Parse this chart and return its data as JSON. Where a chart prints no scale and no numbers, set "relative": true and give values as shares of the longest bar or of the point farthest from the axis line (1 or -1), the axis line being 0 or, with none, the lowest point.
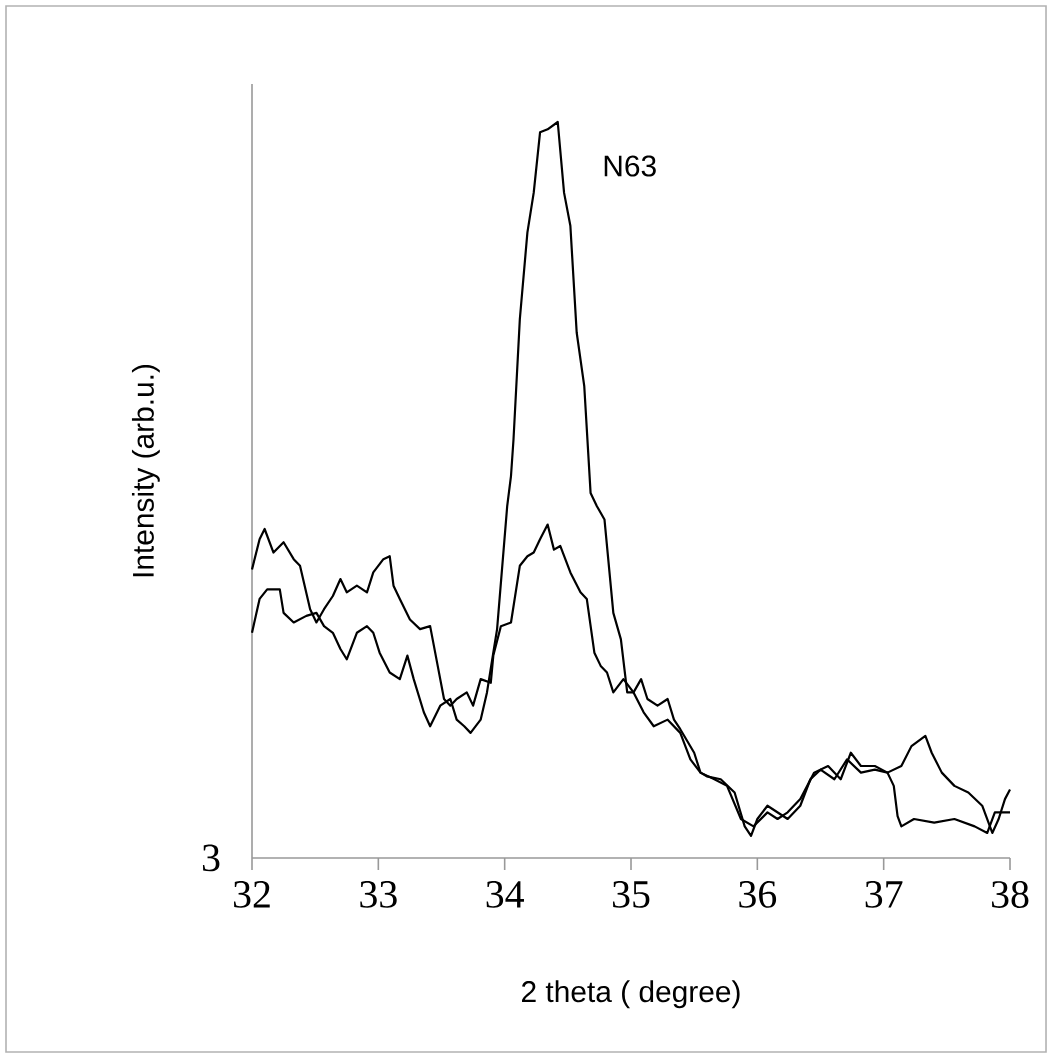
{
  "chart_data": {
    "type": "line",
    "relative": true,
    "xlabel": "2 theta ( degree)",
    "ylabel": "Intensity (arb.u.)",
    "annotations": [
      "3"
    ],
    "xlim": [
      32,
      38
    ],
    "xticks": [
      32,
      33,
      34,
      35,
      36,
      37,
      38
    ],
    "series": [
      {
        "name": "N63",
        "color": "#000000",
        "x": [
          32.0,
          32.06,
          32.12,
          32.22,
          32.25,
          32.33,
          32.43,
          32.51,
          32.57,
          32.64,
          32.7,
          32.75,
          32.83,
          32.91,
          32.96,
          33.01,
          33.09,
          33.17,
          33.23,
          33.28,
          33.36,
          33.41,
          33.49,
          33.57,
          33.62,
          33.68,
          33.73,
          33.81,
          33.86,
          33.91,
          33.94,
          34.02,
          34.05,
          34.07,
          34.12,
          34.18,
          34.23,
          34.28,
          34.34,
          34.42,
          34.47,
          34.52,
          34.57,
          34.63,
          34.68,
          34.73,
          34.79,
          34.86,
          34.92,
          34.97,
          35.02,
          35.08,
          35.13,
          35.21,
          35.29,
          35.34,
          35.39,
          35.5,
          35.55,
          35.6,
          35.71,
          35.82,
          35.9,
          35.95,
          36.0,
          36.08,
          36.16,
          36.24,
          36.34,
          36.42,
          36.5,
          36.61,
          36.71,
          36.82,
          36.93,
          37.03,
          37.08,
          37.11,
          37.14,
          37.24,
          37.4,
          37.56,
          37.72,
          37.82,
          37.88,
          38.0
        ],
        "values": [
          0.306,
          0.352,
          0.365,
          0.365,
          0.333,
          0.32,
          0.329,
          0.333,
          0.315,
          0.306,
          0.284,
          0.27,
          0.306,
          0.315,
          0.306,
          0.279,
          0.252,
          0.243,
          0.275,
          0.243,
          0.198,
          0.179,
          0.207,
          0.216,
          0.188,
          0.179,
          0.17,
          0.188,
          0.225,
          0.279,
          0.311,
          0.478,
          0.519,
          0.569,
          0.732,
          0.85,
          0.904,
          0.986,
          0.99,
          1.0,
          0.904,
          0.859,
          0.714,
          0.641,
          0.496,
          0.478,
          0.46,
          0.333,
          0.297,
          0.225,
          0.225,
          0.243,
          0.216,
          0.207,
          0.216,
          0.188,
          0.175,
          0.143,
          0.116,
          0.111,
          0.107,
          0.089,
          0.043,
          0.03,
          0.053,
          0.071,
          0.062,
          0.053,
          0.071,
          0.107,
          0.12,
          0.107,
          0.134,
          0.116,
          0.12,
          0.116,
          0.098,
          0.057,
          0.043,
          0.053,
          0.048,
          0.053,
          0.043,
          0.034,
          0.062,
          0.062
        ]
      },
      {
        "color": "#000000",
        "x": [
          32.0,
          32.06,
          32.1,
          32.17,
          32.25,
          32.33,
          32.38,
          32.46,
          32.51,
          32.57,
          32.64,
          32.7,
          32.75,
          32.83,
          32.91,
          32.96,
          33.04,
          33.09,
          33.12,
          33.17,
          33.25,
          33.33,
          33.41,
          33.47,
          33.52,
          33.57,
          33.62,
          33.7,
          33.75,
          33.81,
          33.89,
          33.91,
          33.97,
          34.05,
          34.12,
          34.18,
          34.23,
          34.28,
          34.34,
          34.39,
          34.44,
          34.52,
          34.6,
          34.65,
          34.71,
          34.76,
          34.81,
          34.86,
          34.94,
          35.02,
          35.1,
          35.18,
          35.29,
          35.39,
          35.47,
          35.55,
          35.66,
          35.76,
          35.87,
          35.97,
          36.08,
          36.16,
          36.24,
          36.34,
          36.45,
          36.56,
          36.66,
          36.74,
          36.82,
          36.93,
          37.03,
          37.14,
          37.22,
          37.33,
          37.38,
          37.46,
          37.56,
          37.67,
          37.78,
          37.86,
          37.91,
          37.96,
          38.0
        ],
        "values": [
          0.392,
          0.433,
          0.447,
          0.415,
          0.429,
          0.406,
          0.397,
          0.338,
          0.32,
          0.338,
          0.356,
          0.379,
          0.361,
          0.37,
          0.361,
          0.388,
          0.406,
          0.41,
          0.37,
          0.352,
          0.324,
          0.311,
          0.315,
          0.261,
          0.216,
          0.207,
          0.216,
          0.225,
          0.207,
          0.243,
          0.238,
          0.275,
          0.315,
          0.32,
          0.397,
          0.41,
          0.415,
          0.433,
          0.453,
          0.419,
          0.424,
          0.388,
          0.361,
          0.352,
          0.279,
          0.261,
          0.252,
          0.225,
          0.243,
          0.225,
          0.198,
          0.179,
          0.188,
          0.17,
          0.134,
          0.116,
          0.107,
          0.098,
          0.053,
          0.043,
          0.062,
          0.053,
          0.062,
          0.08,
          0.116,
          0.125,
          0.107,
          0.143,
          0.125,
          0.125,
          0.116,
          0.125,
          0.152,
          0.166,
          0.143,
          0.116,
          0.098,
          0.089,
          0.071,
          0.034,
          0.053,
          0.08,
          0.093
        ]
      }
    ]
  }
}
